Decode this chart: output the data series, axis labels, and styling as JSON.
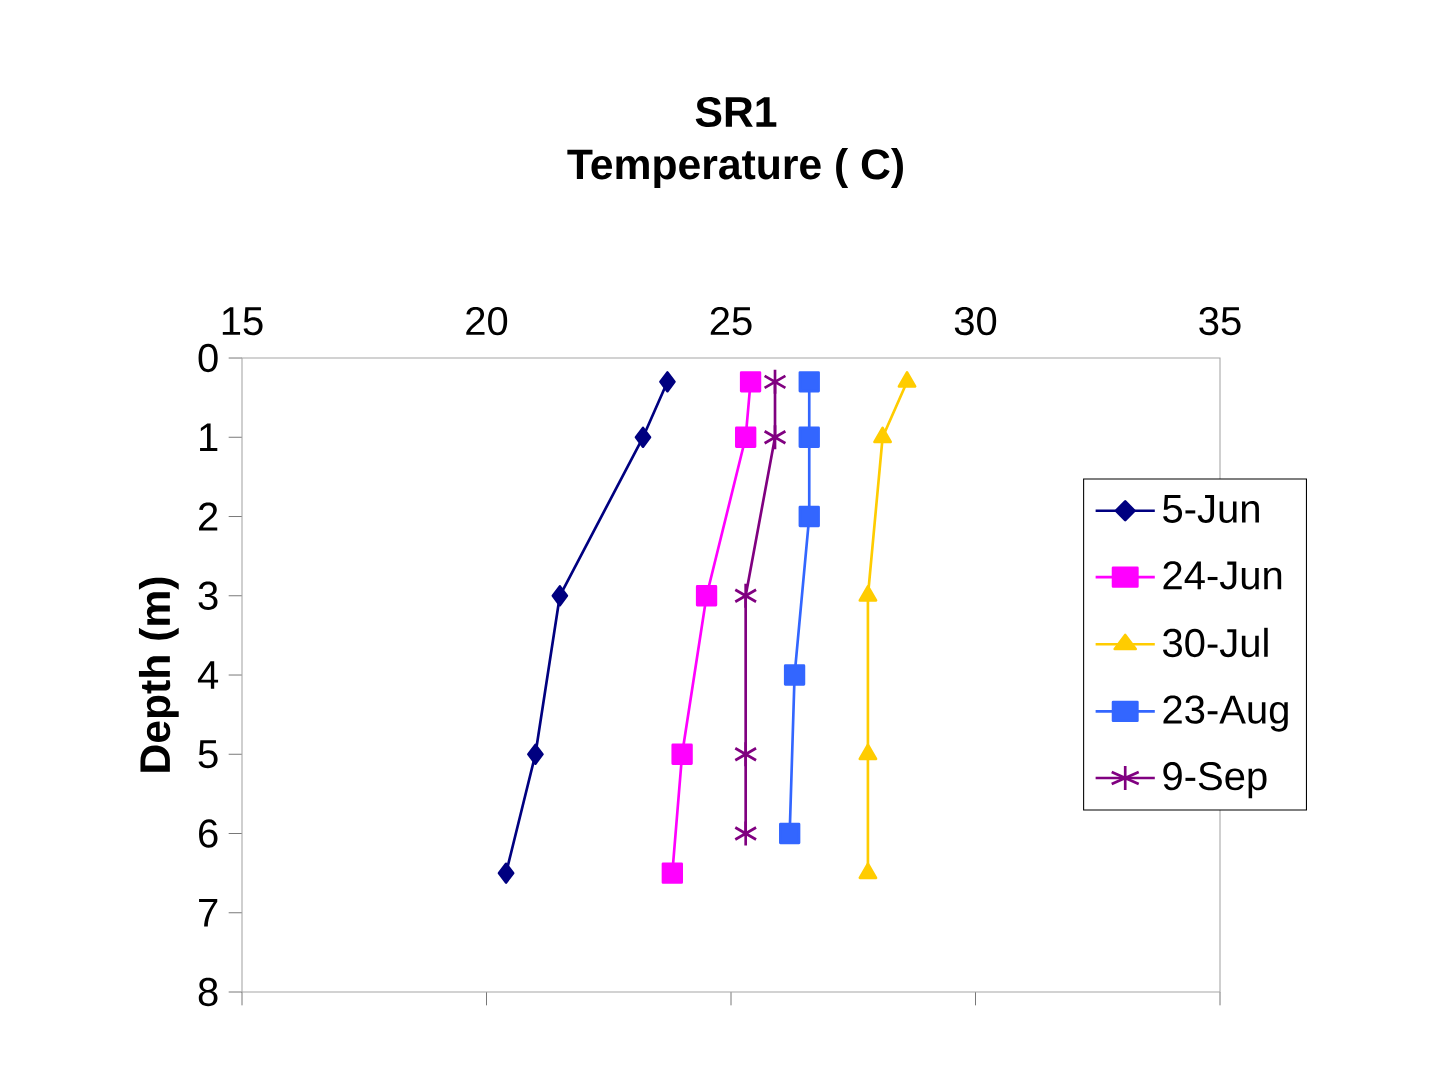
{
  "chart_data": {
    "type": "line",
    "title": "SR1",
    "subtitle": "Temperature ( C)",
    "ylabel": "Depth (m)",
    "xlim": [
      15,
      35
    ],
    "xticks": [
      15,
      20,
      25,
      30,
      35
    ],
    "ylim": [
      8,
      0
    ],
    "yticks": [
      0,
      1,
      2,
      3,
      4,
      5,
      6,
      7,
      8
    ],
    "grid": false,
    "legend": "right",
    "series": [
      {
        "name": "5-Jun",
        "color": "#000080",
        "marker": "diamond",
        "x": [
          23.7,
          23.2,
          21.5,
          21.0,
          20.4
        ],
        "values": [
          0.3,
          1,
          3,
          5,
          6.5
        ]
      },
      {
        "name": "24-Jun",
        "color": "#ff00ff",
        "marker": "square",
        "x": [
          25.4,
          25.3,
          24.5,
          24.0,
          23.8
        ],
        "values": [
          0.3,
          1,
          3,
          5,
          6.5
        ]
      },
      {
        "name": "30-Jul",
        "color": "#ffcc00",
        "marker": "triangle",
        "x": [
          28.6,
          28.1,
          27.8,
          27.8,
          27.8
        ],
        "values": [
          0.3,
          1,
          3,
          5,
          6.5
        ]
      },
      {
        "name": "23-Aug",
        "color": "#3366ff",
        "marker": "square",
        "x": [
          26.6,
          26.6,
          26.6,
          26.3,
          26.2
        ],
        "values": [
          0.3,
          1,
          2,
          4,
          6
        ]
      },
      {
        "name": "9-Sep",
        "color": "#800080",
        "marker": "cross",
        "x": [
          25.9,
          25.9,
          25.3,
          25.3,
          25.3
        ],
        "values": [
          0.3,
          1,
          3,
          5,
          6
        ]
      }
    ]
  }
}
